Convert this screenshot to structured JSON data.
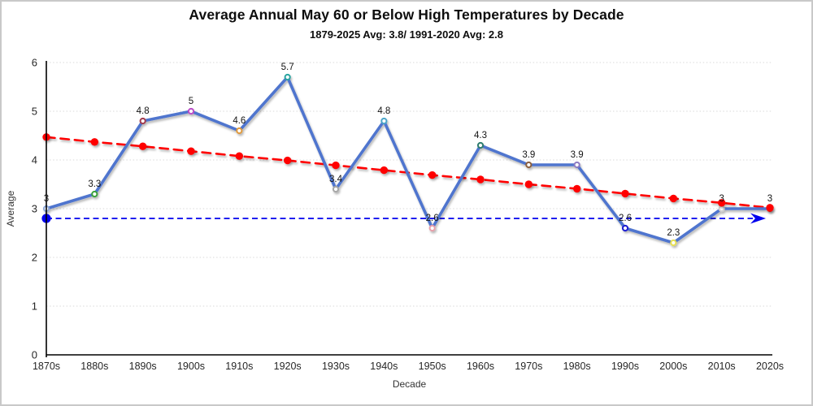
{
  "header": {
    "title": "Average Annual May 60 or Below High Temperatures by Decade",
    "subtitle": "1879-2025 Avg: 3.8/ 1991-2020 Avg: 2.8"
  },
  "colors": {
    "main_line": "#4f74ce",
    "trend_line": "#ff0000",
    "reference_line": "#0000ee",
    "gridline": "#d9d9d9",
    "axis": "#000000",
    "frame_border": "#c9c9c9"
  },
  "chart_data": {
    "type": "line",
    "title": "Average Annual May 60 or Below High Temperatures by Decade",
    "subtitle": "1879-2025 Avg: 3.8/ 1991-2020 Avg: 2.8",
    "xlabel": "Decade",
    "ylabel": "Average",
    "ylim": [
      0,
      6
    ],
    "yticks": [
      "0",
      "1",
      "2",
      "3",
      "4",
      "5",
      "6"
    ],
    "grid": "horizontal-dotted",
    "legend": "none",
    "categories": [
      "1870s",
      "1880s",
      "1890s",
      "1900s",
      "1910s",
      "1920s",
      "1930s",
      "1940s",
      "1950s",
      "1960s",
      "1970s",
      "1980s",
      "1990s",
      "2000s",
      "2010s",
      "2020s"
    ],
    "series": [
      {
        "name": "Decade average",
        "style": "solid",
        "color": "#4f74ce",
        "values": [
          3,
          3.3,
          4.8,
          5,
          4.6,
          5.7,
          3.4,
          4.8,
          2.6,
          4.3,
          3.9,
          3.9,
          2.6,
          2.3,
          3,
          3
        ],
        "data_labels": [
          "3",
          "3.3",
          "4.8",
          "5",
          "4.6",
          "5.7",
          "3.4",
          "4.8",
          "2.6",
          "4.3",
          "3.9",
          "3.9",
          "2.6",
          "2.3",
          "3",
          "3"
        ],
        "marker_colors": [
          "#8ea9db",
          "#3ba13b",
          "#a23b4e",
          "#bb4dc8",
          "#e09a3e",
          "#2aa5a0",
          "#a6a6a6",
          "#4ba6c9",
          "#e79ea9",
          "#2e7d6e",
          "#8b5e3c",
          "#8e7cc3",
          "#1f1fd1",
          "#e6e052",
          "#d0cece",
          "#ff2020"
        ]
      },
      {
        "name": "Linear trend",
        "style": "dashed-with-dots",
        "color": "#ff0000",
        "values": [
          4.47,
          4.37,
          4.28,
          4.18,
          4.08,
          3.99,
          3.89,
          3.79,
          3.69,
          3.6,
          3.5,
          3.41,
          3.31,
          3.21,
          3.12,
          3.02
        ]
      },
      {
        "name": "1991-2020 average reference",
        "style": "dashed-arrow",
        "color": "#0000ee",
        "value": 2.8
      }
    ]
  }
}
